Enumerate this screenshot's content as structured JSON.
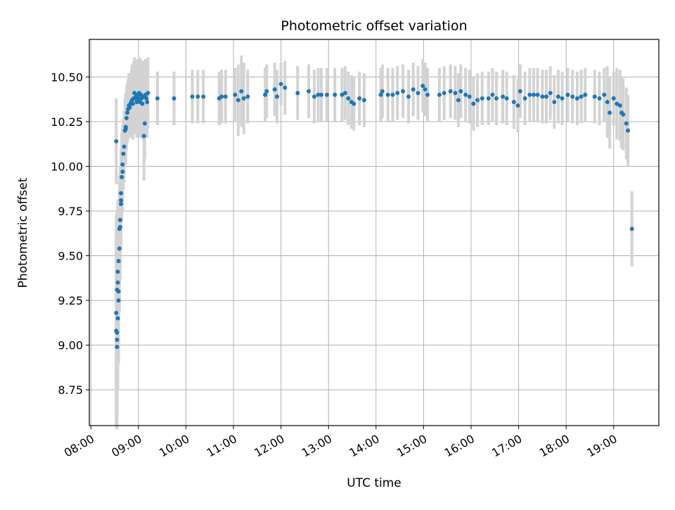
{
  "chart_data": {
    "type": "scatter",
    "title": "Photometric offset variation",
    "xlabel": "UTC time",
    "ylabel": "Photometric offset",
    "x_ticks": [
      "08:00",
      "09:00",
      "10:00",
      "11:00",
      "12:00",
      "13:00",
      "14:00",
      "15:00",
      "16:00",
      "17:00",
      "18:00",
      "19:00"
    ],
    "y_ticks": [
      "8.75",
      "9.00",
      "9.25",
      "9.50",
      "9.75",
      "10.00",
      "10.25",
      "10.50"
    ],
    "xlim": [
      "07:58",
      "19:57"
    ],
    "ylim": [
      8.55,
      10.71
    ],
    "grid": true,
    "colors": {
      "point": "#1f77b4",
      "errorbar": "#d3d3d3",
      "grid": "#b0b0b0"
    },
    "points": [
      [
        "08:32",
        10.14,
        0.24
      ],
      [
        "08:32",
        9.18,
        0.55
      ],
      [
        "08:32",
        9.08,
        0.55
      ],
      [
        "08:33",
        9.03,
        0.5
      ],
      [
        "08:33",
        8.99,
        0.4
      ],
      [
        "08:33",
        9.31,
        0.45
      ],
      [
        "08:33",
        9.07,
        0.45
      ],
      [
        "08:34",
        9.35,
        0.45
      ],
      [
        "08:34",
        9.41,
        0.4
      ],
      [
        "08:34",
        9.15,
        0.4
      ],
      [
        "08:35",
        9.47,
        0.35
      ],
      [
        "08:35",
        9.3,
        0.4
      ],
      [
        "08:35",
        9.25,
        0.35
      ],
      [
        "08:36",
        9.54,
        0.35
      ],
      [
        "08:36",
        9.65,
        0.3
      ],
      [
        "08:37",
        9.7,
        0.3
      ],
      [
        "08:37",
        9.66,
        0.3
      ],
      [
        "08:38",
        9.79,
        0.25
      ],
      [
        "08:38",
        9.85,
        0.25
      ],
      [
        "08:38",
        9.81,
        0.25
      ],
      [
        "08:39",
        9.94,
        0.25
      ],
      [
        "08:40",
        9.97,
        0.22
      ],
      [
        "08:40",
        10.01,
        0.22
      ],
      [
        "08:41",
        10.07,
        0.2
      ],
      [
        "08:42",
        10.11,
        0.2
      ],
      [
        "08:43",
        10.2,
        0.18
      ],
      [
        "08:44",
        10.22,
        0.18
      ],
      [
        "08:44",
        10.21,
        0.2
      ],
      [
        "08:45",
        10.27,
        0.18
      ],
      [
        "08:46",
        10.3,
        0.17
      ],
      [
        "08:47",
        10.32,
        0.17
      ],
      [
        "08:48",
        10.34,
        0.18
      ],
      [
        "08:49",
        10.33,
        0.17
      ],
      [
        "08:50",
        10.35,
        0.17
      ],
      [
        "08:51",
        10.36,
        0.18
      ],
      [
        "08:52",
        10.37,
        0.2
      ],
      [
        "08:53",
        10.35,
        0.2
      ],
      [
        "08:54",
        10.38,
        0.2
      ],
      [
        "08:55",
        10.41,
        0.2
      ],
      [
        "08:56",
        10.38,
        0.2
      ],
      [
        "08:57",
        10.39,
        0.2
      ],
      [
        "08:58",
        10.36,
        0.2
      ],
      [
        "08:59",
        10.4,
        0.2
      ],
      [
        "09:00",
        10.38,
        0.2
      ],
      [
        "09:01",
        10.41,
        0.2
      ],
      [
        "09:02",
        10.36,
        0.2
      ],
      [
        "09:03",
        10.4,
        0.2
      ],
      [
        "09:04",
        10.38,
        0.2
      ],
      [
        "09:05",
        10.35,
        0.2
      ],
      [
        "09:06",
        10.39,
        0.2
      ],
      [
        "09:07",
        10.17,
        0.25
      ],
      [
        "09:08",
        10.24,
        0.2
      ],
      [
        "09:09",
        10.4,
        0.2
      ],
      [
        "09:10",
        10.38,
        0.2
      ],
      [
        "09:11",
        10.36,
        0.2
      ],
      [
        "09:12",
        10.41,
        0.2
      ],
      [
        "09:24",
        10.38,
        0.15
      ],
      [
        "09:45",
        10.38,
        0.15
      ],
      [
        "10:08",
        10.39,
        0.15
      ],
      [
        "10:15",
        10.39,
        0.15
      ],
      [
        "10:22",
        10.39,
        0.15
      ],
      [
        "10:42",
        10.38,
        0.15
      ],
      [
        "10:45",
        10.39,
        0.15
      ],
      [
        "10:50",
        10.39,
        0.15
      ],
      [
        "11:02",
        10.4,
        0.15
      ],
      [
        "11:06",
        10.37,
        0.2
      ],
      [
        "11:10",
        10.42,
        0.2
      ],
      [
        "11:13",
        10.38,
        0.2
      ],
      [
        "11:18",
        10.39,
        0.15
      ],
      [
        "11:40",
        10.4,
        0.15
      ],
      [
        "11:42",
        10.42,
        0.15
      ],
      [
        "11:52",
        10.43,
        0.15
      ],
      [
        "11:55",
        10.39,
        0.15
      ],
      [
        "12:00",
        10.46,
        0.12
      ],
      [
        "12:05",
        10.44,
        0.15
      ],
      [
        "12:21",
        10.41,
        0.15
      ],
      [
        "12:35",
        10.42,
        0.15
      ],
      [
        "12:42",
        10.39,
        0.15
      ],
      [
        "12:47",
        10.4,
        0.15
      ],
      [
        "12:51",
        10.4,
        0.15
      ],
      [
        "12:58",
        10.4,
        0.15
      ],
      [
        "13:08",
        10.4,
        0.15
      ],
      [
        "13:17",
        10.4,
        0.15
      ],
      [
        "13:21",
        10.41,
        0.15
      ],
      [
        "13:25",
        10.38,
        0.15
      ],
      [
        "13:29",
        10.36,
        0.15
      ],
      [
        "13:32",
        10.35,
        0.15
      ],
      [
        "13:39",
        10.38,
        0.15
      ],
      [
        "13:45",
        10.37,
        0.15
      ],
      [
        "14:06",
        10.4,
        0.15
      ],
      [
        "14:08",
        10.42,
        0.15
      ],
      [
        "14:15",
        10.4,
        0.15
      ],
      [
        "14:21",
        10.4,
        0.15
      ],
      [
        "14:27",
        10.41,
        0.15
      ],
      [
        "14:34",
        10.42,
        0.15
      ],
      [
        "14:41",
        10.39,
        0.15
      ],
      [
        "14:47",
        10.43,
        0.15
      ],
      [
        "14:53",
        10.41,
        0.15
      ],
      [
        "14:59",
        10.45,
        0.15
      ],
      [
        "15:02",
        10.43,
        0.15
      ],
      [
        "15:05",
        10.4,
        0.15
      ],
      [
        "15:20",
        10.4,
        0.15
      ],
      [
        "15:26",
        10.41,
        0.15
      ],
      [
        "15:34",
        10.42,
        0.15
      ],
      [
        "15:40",
        10.41,
        0.15
      ],
      [
        "15:44",
        10.37,
        0.15
      ],
      [
        "15:47",
        10.42,
        0.15
      ],
      [
        "15:53",
        10.4,
        0.15
      ],
      [
        "15:58",
        10.39,
        0.15
      ],
      [
        "16:03",
        10.35,
        0.15
      ],
      [
        "16:08",
        10.37,
        0.15
      ],
      [
        "16:14",
        10.38,
        0.15
      ],
      [
        "16:22",
        10.38,
        0.15
      ],
      [
        "16:27",
        10.4,
        0.15
      ],
      [
        "16:32",
        10.38,
        0.15
      ],
      [
        "16:40",
        10.39,
        0.15
      ],
      [
        "16:45",
        10.38,
        0.15
      ],
      [
        "16:54",
        10.36,
        0.15
      ],
      [
        "16:59",
        10.34,
        0.15
      ],
      [
        "17:02",
        10.42,
        0.15
      ],
      [
        "17:08",
        10.38,
        0.15
      ],
      [
        "17:14",
        10.4,
        0.15
      ],
      [
        "17:19",
        10.4,
        0.15
      ],
      [
        "17:24",
        10.4,
        0.15
      ],
      [
        "17:30",
        10.39,
        0.15
      ],
      [
        "17:35",
        10.39,
        0.15
      ],
      [
        "17:40",
        10.41,
        0.15
      ],
      [
        "17:45",
        10.36,
        0.15
      ],
      [
        "17:50",
        10.39,
        0.15
      ],
      [
        "17:55",
        10.38,
        0.15
      ],
      [
        "18:02",
        10.4,
        0.15
      ],
      [
        "18:08",
        10.39,
        0.15
      ],
      [
        "18:14",
        10.38,
        0.15
      ],
      [
        "18:19",
        10.39,
        0.15
      ],
      [
        "18:24",
        10.4,
        0.15
      ],
      [
        "18:36",
        10.39,
        0.15
      ],
      [
        "18:42",
        10.38,
        0.15
      ],
      [
        "18:48",
        10.4,
        0.15
      ],
      [
        "18:52",
        10.36,
        0.2
      ],
      [
        "18:55",
        10.3,
        0.2
      ],
      [
        "19:00",
        10.38,
        0.15
      ],
      [
        "19:04",
        10.35,
        0.2
      ],
      [
        "19:08",
        10.34,
        0.2
      ],
      [
        "19:10",
        10.3,
        0.2
      ],
      [
        "19:12",
        10.29,
        0.2
      ],
      [
        "19:16",
        10.24,
        0.2
      ],
      [
        "19:18",
        10.2,
        0.2
      ],
      [
        "19:23",
        9.65,
        0.21
      ]
    ]
  }
}
